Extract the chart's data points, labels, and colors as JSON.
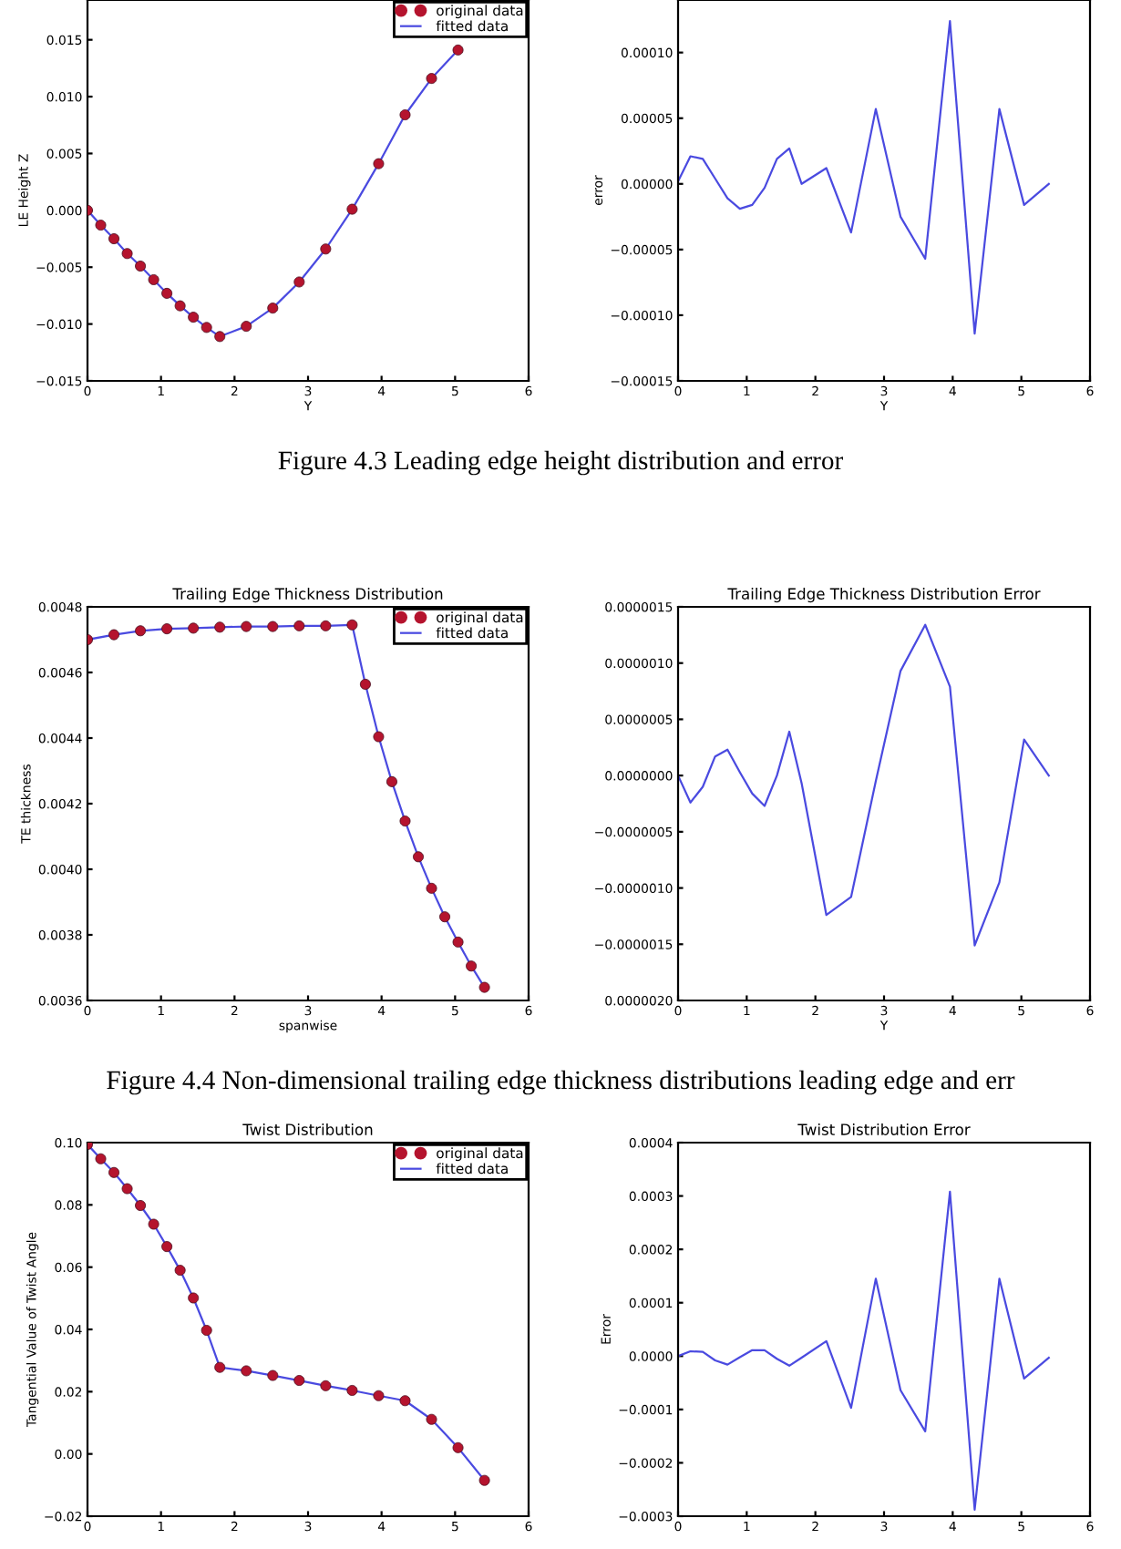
{
  "chart_data": [
    {
      "type": "line",
      "xlabel": "Y",
      "ylabel": "LE Height Z",
      "legend": "top right",
      "line_style": "solid",
      "xlim": [
        0,
        6
      ],
      "xticks": [
        0,
        1,
        2,
        3,
        4,
        5,
        6
      ],
      "ylim": [
        -0.015,
        0.0185
      ],
      "yticks": [
        {
          "value": -0.015,
          "label": "−0.015"
        },
        {
          "value": -0.01,
          "label": "−0.010"
        },
        {
          "value": -0.005,
          "label": "−0.005"
        },
        {
          "value": 0,
          "label": "0.000"
        },
        {
          "value": 0.005,
          "label": "0.005"
        },
        {
          "value": 0.01,
          "label": "0.010"
        },
        {
          "value": 0.015,
          "label": "0.015"
        }
      ],
      "x": [
        0,
        0.18,
        0.36,
        0.54,
        0.72,
        0.9,
        1.08,
        1.26,
        1.44,
        1.62,
        1.8,
        2.16,
        2.52,
        2.88,
        3.24,
        3.6,
        3.96,
        4.32,
        4.68,
        5.04
      ],
      "series": [
        {
          "name": "original data",
          "type": "scatter",
          "marker": "circle",
          "color": "#b5142e",
          "values": [
            0,
            -0.0013,
            -0.0025,
            -0.0038,
            -0.0049,
            -0.0061,
            -0.0073,
            -0.0084,
            -0.0094,
            -0.0103,
            -0.0111,
            -0.0102,
            -0.0086,
            -0.0063,
            -0.0034,
            0.0001,
            0.0041,
            0.0084,
            0.0116,
            0.0141
          ]
        },
        {
          "name": "fitted data",
          "type": "line",
          "color": "#4a4ae0",
          "values": [
            0,
            -0.0013,
            -0.0025,
            -0.0038,
            -0.0049,
            -0.0061,
            -0.0073,
            -0.0084,
            -0.0094,
            -0.0103,
            -0.0111,
            -0.0102,
            -0.0086,
            -0.0063,
            -0.0034,
            0.0001,
            0.0041,
            0.0084,
            0.0116,
            0.0141
          ]
        }
      ],
      "annotations": [
        "Figure 4.3 Leading edge height distribution and error"
      ]
    },
    {
      "type": "line",
      "xlabel": "Y",
      "ylabel": "error",
      "line_style": "solid",
      "color": "#4a4ae0",
      "xlim": [
        0,
        6
      ],
      "xticks": [
        0,
        1,
        2,
        3,
        4,
        5,
        6
      ],
      "ylim": [
        -0.00015,
        0.00014
      ],
      "yticks": [
        {
          "value": -0.00015,
          "label": "−0.00015"
        },
        {
          "value": -0.0001,
          "label": "−0.00010"
        },
        {
          "value": -5e-05,
          "label": "−0.00005"
        },
        {
          "value": 0,
          "label": "0.00000"
        },
        {
          "value": 5e-05,
          "label": "0.00005"
        },
        {
          "value": 0.0001,
          "label": "0.00010"
        }
      ],
      "x": [
        0,
        0.18,
        0.36,
        0.54,
        0.72,
        0.9,
        1.08,
        1.26,
        1.44,
        1.62,
        1.8,
        2.16,
        2.52,
        2.88,
        3.24,
        3.6,
        3.96,
        4.32,
        4.68,
        5.04,
        5.4
      ],
      "values": [
        2e-06,
        2.1e-05,
        1.9e-05,
        4e-06,
        -1.1e-05,
        -1.9e-05,
        -1.6e-05,
        -3e-06,
        1.9e-05,
        2.7e-05,
        0.0,
        1.2e-05,
        -3.7e-05,
        5.7e-05,
        -2.5e-05,
        -5.7e-05,
        0.000124,
        -0.000114,
        5.7e-05,
        -1.6e-05,
        0.0
      ]
    },
    {
      "type": "line",
      "title": "Trailing Edge Thickness Distribution",
      "xlabel": "spanwise",
      "ylabel": "TE thickness",
      "legend": "top right",
      "line_style": "solid",
      "xlim": [
        0,
        6
      ],
      "xticks": [
        0,
        1,
        2,
        3,
        4,
        5,
        6
      ],
      "ylim": [
        0.0036,
        0.0048
      ],
      "yticks": [
        {
          "value": 0.0036,
          "label": "0.0036"
        },
        {
          "value": 0.0038,
          "label": "0.0038"
        },
        {
          "value": 0.004,
          "label": "0.0040"
        },
        {
          "value": 0.0042,
          "label": "0.0042"
        },
        {
          "value": 0.0044,
          "label": "0.0044"
        },
        {
          "value": 0.0046,
          "label": "0.0046"
        },
        {
          "value": 0.0048,
          "label": "0.0048"
        }
      ],
      "x": [
        0,
        0.36,
        0.72,
        1.08,
        1.44,
        1.8,
        2.16,
        2.52,
        2.88,
        3.24,
        3.6,
        3.78,
        3.96,
        4.14,
        4.32,
        4.5,
        4.68,
        4.86,
        5.04,
        5.22,
        5.4
      ],
      "series": [
        {
          "name": "original data",
          "type": "scatter",
          "marker": "circle",
          "color": "#b5142e",
          "values": [
            0.0047,
            0.004715,
            0.004727,
            0.004733,
            0.004735,
            0.004738,
            0.00474,
            0.00474,
            0.004742,
            0.004742,
            0.004745,
            0.004564,
            0.004404,
            0.004267,
            0.004147,
            0.004038,
            0.003942,
            0.003855,
            0.003778,
            0.003705,
            0.00364
          ]
        },
        {
          "name": "fitted data",
          "type": "line",
          "color": "#4a4ae0",
          "values": [
            0.0047,
            0.004715,
            0.004727,
            0.004733,
            0.004735,
            0.004738,
            0.00474,
            0.00474,
            0.004742,
            0.004742,
            0.004745,
            0.004564,
            0.004404,
            0.004267,
            0.004147,
            0.004038,
            0.003942,
            0.003855,
            0.003778,
            0.003705,
            0.00364
          ]
        }
      ],
      "annotations": [
        "Figure 4.4 Non-dimensional trailing edge thickness distributions leading edge and err"
      ]
    },
    {
      "type": "line",
      "title": "Trailing Edge Thickness Distribution Error",
      "xlabel": "Y",
      "line_style": "solid",
      "color": "#4a4ae0",
      "xlim": [
        0,
        6
      ],
      "xticks": [
        0,
        1,
        2,
        3,
        4,
        5,
        6
      ],
      "ylim": [
        -2e-06,
        1.5e-06
      ],
      "yticks": [
        {
          "value": -2e-06,
          "label": "0.0000020"
        },
        {
          "value": -1.5e-06,
          "label": "−0.0000015"
        },
        {
          "value": -1e-06,
          "label": "−0.0000010"
        },
        {
          "value": -5e-07,
          "label": "−0.0000005"
        },
        {
          "value": 0,
          "label": "0.0000000"
        },
        {
          "value": 5e-07,
          "label": "0.0000005"
        },
        {
          "value": 1e-06,
          "label": "0.0000010"
        },
        {
          "value": 1.5e-06,
          "label": "0.0000015"
        }
      ],
      "x": [
        0,
        0.18,
        0.36,
        0.54,
        0.72,
        0.9,
        1.08,
        1.26,
        1.44,
        1.62,
        1.8,
        2.16,
        2.52,
        2.88,
        3.24,
        3.6,
        3.96,
        4.32,
        4.68,
        5.04,
        5.4
      ],
      "values": [
        0,
        -2.4e-07,
        -1e-07,
        1.7e-07,
        2.3e-07,
        3e-08,
        -1.6e-07,
        -2.7e-07,
        0,
        3.9e-07,
        -7e-08,
        -1.24e-06,
        -1.08e-06,
        -5e-08,
        9.3e-07,
        1.34e-06,
        7.9e-07,
        -1.51e-06,
        -9.5e-07,
        3.2e-07,
        0
      ]
    },
    {
      "type": "line",
      "title": "Twist Distribution",
      "ylabel": "Tangential Value of Twist Angle",
      "legend": "top right",
      "line_style": "solid",
      "xlim": [
        0,
        6
      ],
      "xticks": [
        0,
        1,
        2,
        3,
        4,
        5,
        6
      ],
      "ylim": [
        -0.02,
        0.1
      ],
      "yticks": [
        {
          "value": -0.02,
          "label": "−0.02"
        },
        {
          "value": 0,
          "label": "0.00"
        },
        {
          "value": 0.02,
          "label": "0.02"
        },
        {
          "value": 0.04,
          "label": "0.04"
        },
        {
          "value": 0.06,
          "label": "0.06"
        },
        {
          "value": 0.08,
          "label": "0.08"
        },
        {
          "value": 0.1,
          "label": "0.10"
        }
      ],
      "x": [
        0,
        0.18,
        0.36,
        0.54,
        0.72,
        0.9,
        1.08,
        1.26,
        1.44,
        1.62,
        1.8,
        2.16,
        2.52,
        2.88,
        3.24,
        3.6,
        3.96,
        4.32,
        4.68,
        5.04,
        5.4
      ],
      "series": [
        {
          "name": "original data",
          "type": "scatter",
          "marker": "circle",
          "color": "#b5142e",
          "values": [
            0.0994,
            0.0948,
            0.0904,
            0.0852,
            0.0798,
            0.0738,
            0.0666,
            0.059,
            0.0501,
            0.0397,
            0.0278,
            0.0267,
            0.0252,
            0.0236,
            0.0219,
            0.0204,
            0.0187,
            0.0171,
            0.0111,
            0.002,
            -0.0085
          ]
        },
        {
          "name": "fitted data",
          "type": "line",
          "color": "#4a4ae0",
          "values": [
            0.0994,
            0.0948,
            0.0904,
            0.0852,
            0.0798,
            0.0738,
            0.0666,
            0.059,
            0.0501,
            0.0397,
            0.0278,
            0.0267,
            0.0252,
            0.0236,
            0.0219,
            0.0204,
            0.0187,
            0.0171,
            0.0111,
            0.002,
            -0.0085
          ]
        }
      ]
    },
    {
      "type": "line",
      "title": "Twist Distribution Error",
      "ylabel": "Error",
      "line_style": "solid",
      "color": "#4a4ae0",
      "xlim": [
        0,
        6
      ],
      "xticks": [
        0,
        1,
        2,
        3,
        4,
        5,
        6
      ],
      "ylim": [
        -0.0003,
        0.0004
      ],
      "yticks": [
        {
          "value": -0.0003,
          "label": "−0.0003"
        },
        {
          "value": -0.0002,
          "label": "−0.0002"
        },
        {
          "value": -0.0001,
          "label": "−0.0001"
        },
        {
          "value": 0,
          "label": "0.0000"
        },
        {
          "value": 0.0001,
          "label": "0.0001"
        },
        {
          "value": 0.0002,
          "label": "0.0002"
        },
        {
          "value": 0.0003,
          "label": "0.0003"
        },
        {
          "value": 0.0004,
          "label": "0.0004"
        }
      ],
      "x": [
        0,
        0.18,
        0.36,
        0.54,
        0.72,
        0.9,
        1.08,
        1.26,
        1.44,
        1.62,
        1.8,
        2.16,
        2.52,
        2.88,
        3.24,
        3.6,
        3.96,
        4.32,
        4.68,
        5.04,
        5.4
      ],
      "values": [
        0,
        9e-06,
        8e-06,
        -8e-06,
        -1.6e-05,
        -2e-06,
        1.1e-05,
        1.1e-05,
        -5e-06,
        -1.8e-05,
        -3e-06,
        2.8e-05,
        -9.7e-05,
        0.000145,
        -6.4e-05,
        -0.000141,
        0.000308,
        -0.000288,
        0.000145,
        -4.2e-05,
        -3e-06
      ]
    }
  ]
}
